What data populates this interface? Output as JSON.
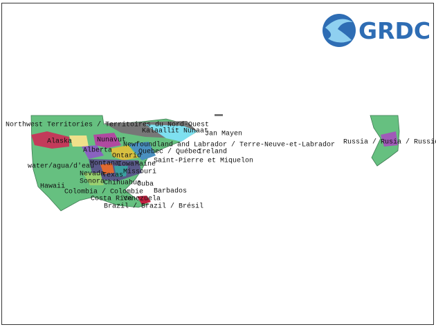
{
  "logo": {
    "text": "GRDC"
  },
  "labels": [
    "Northwest Territories / Territoires du Nord-Ouest",
    "Kalaallit Nunaat",
    "Jan Mayen",
    "Alaska",
    "Nunavut",
    "Newfoundland and Labrador / Terre-Neuve-et-Labrador",
    "Alberta",
    "Quebec / Québec",
    "Ireland",
    "Ontario",
    "Saint-Pierre et Miquelon",
    "Montana",
    "Iowa",
    "Maine",
    "water/agua/d'eau",
    "Missouri",
    "Nevada",
    "Texas",
    "Sonora",
    "Chihuahua",
    "Cuba",
    "Hawaii",
    "Barbados",
    "Colombia / Colombie",
    "Costa Rica",
    "Venezuela",
    "Brazil / Brazil / Brésil",
    "Russia / Rusia / Russie"
  ]
}
